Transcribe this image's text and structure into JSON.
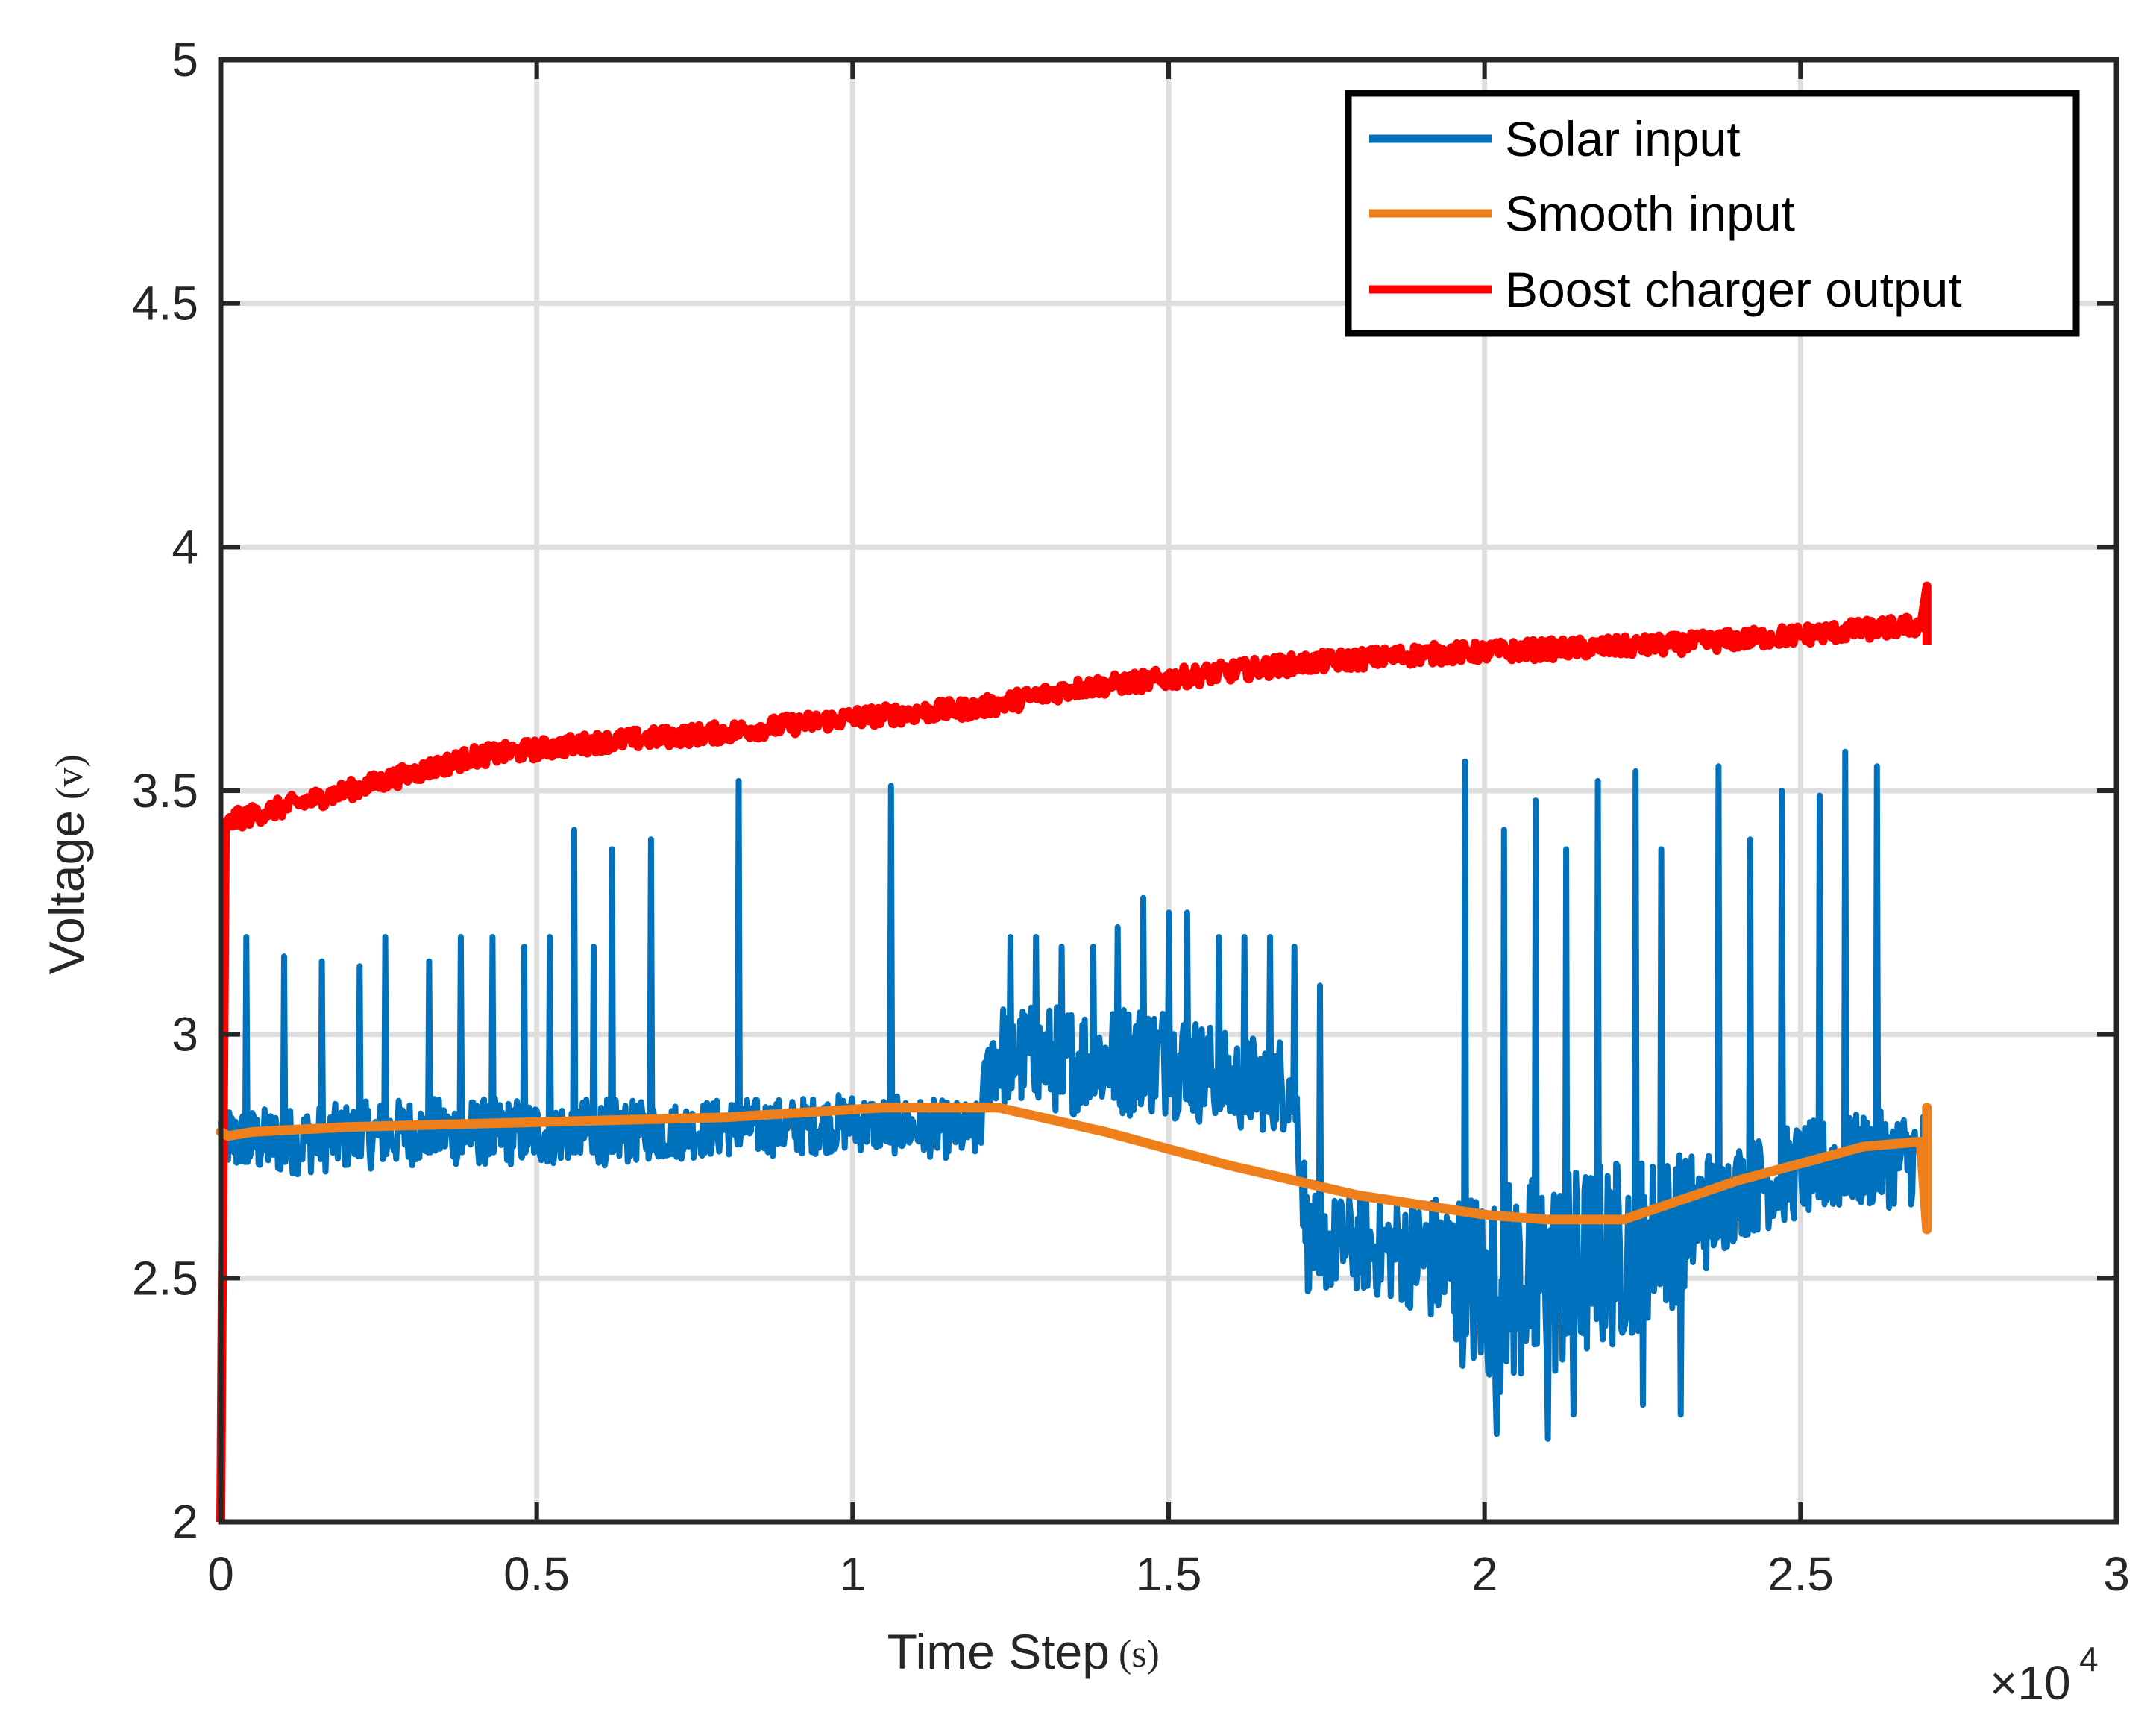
{
  "chart_data": {
    "type": "line",
    "title": "",
    "xlabel": "Time Step",
    "xlabel_unit": "(s)",
    "ylabel": "Voltage",
    "ylabel_unit": "(v)",
    "x_multiplier_label": "×10",
    "x_multiplier_exponent": "4",
    "xlim": [
      0,
      3
    ],
    "ylim": [
      2,
      5
    ],
    "x_ticks": [
      "0",
      "0.5",
      "1",
      "1.5",
      "2",
      "2.5",
      "3"
    ],
    "y_ticks": [
      "2",
      "2.5",
      "3",
      "3.5",
      "4",
      "4.5",
      "5"
    ],
    "grid": true,
    "legend_position": "top-right",
    "series": [
      {
        "name": "Solar input",
        "color": "#0072BD",
        "style": "noisy-with-spikes",
        "x": [
          0,
          0.02,
          0.1,
          0.2,
          0.3,
          0.4,
          0.5,
          0.6,
          0.7,
          0.8,
          0.9,
          1.0,
          1.1,
          1.2,
          1.22,
          1.3,
          1.4,
          1.5,
          1.6,
          1.7,
          1.72,
          1.8,
          1.9,
          2.0,
          2.1,
          2.2,
          2.3,
          2.4,
          2.5,
          2.6,
          2.7
        ],
        "values": [
          2.8,
          2.78,
          2.78,
          2.79,
          2.8,
          2.8,
          2.8,
          2.8,
          2.8,
          2.81,
          2.81,
          2.82,
          2.81,
          2.8,
          2.96,
          2.95,
          2.95,
          2.95,
          2.9,
          2.9,
          2.57,
          2.57,
          2.55,
          2.48,
          2.5,
          2.55,
          2.6,
          2.68,
          2.72,
          2.74,
          2.75
        ],
        "noise_amplitude": [
          0.07,
          0.07,
          0.07,
          0.07,
          0.07,
          0.07,
          0.07,
          0.07,
          0.06,
          0.06,
          0.06,
          0.06,
          0.06,
          0.06,
          0.11,
          0.11,
          0.12,
          0.12,
          0.1,
          0.1,
          0.1,
          0.1,
          0.12,
          0.22,
          0.22,
          0.2,
          0.16,
          0.1,
          0.1,
          0.1,
          0.1
        ],
        "spikes": [
          {
            "x": 0.04,
            "y": 3.2
          },
          {
            "x": 0.1,
            "y": 3.16
          },
          {
            "x": 0.16,
            "y": 3.15
          },
          {
            "x": 0.22,
            "y": 3.14
          },
          {
            "x": 0.26,
            "y": 3.2
          },
          {
            "x": 0.33,
            "y": 3.15
          },
          {
            "x": 0.38,
            "y": 3.2
          },
          {
            "x": 0.43,
            "y": 3.2
          },
          {
            "x": 0.48,
            "y": 3.18
          },
          {
            "x": 0.52,
            "y": 3.2
          },
          {
            "x": 0.56,
            "y": 3.18
          },
          {
            "x": 0.59,
            "y": 3.18
          },
          {
            "x": 0.56,
            "y": 3.42
          },
          {
            "x": 0.62,
            "y": 3.38
          },
          {
            "x": 0.68,
            "y": 3.4
          },
          {
            "x": 0.82,
            "y": 3.52
          },
          {
            "x": 1.06,
            "y": 3.51
          },
          {
            "x": 1.25,
            "y": 3.2
          },
          {
            "x": 1.29,
            "y": 3.2
          },
          {
            "x": 1.33,
            "y": 3.18
          },
          {
            "x": 1.38,
            "y": 3.18
          },
          {
            "x": 1.42,
            "y": 3.22
          },
          {
            "x": 1.46,
            "y": 3.28
          },
          {
            "x": 1.5,
            "y": 3.25
          },
          {
            "x": 1.53,
            "y": 3.25
          },
          {
            "x": 1.58,
            "y": 3.2
          },
          {
            "x": 1.62,
            "y": 3.2
          },
          {
            "x": 1.66,
            "y": 3.2
          },
          {
            "x": 1.7,
            "y": 3.18
          },
          {
            "x": 1.74,
            "y": 3.1
          },
          {
            "x": 1.97,
            "y": 3.56
          },
          {
            "x": 2.03,
            "y": 3.42
          },
          {
            "x": 2.08,
            "y": 3.48
          },
          {
            "x": 2.13,
            "y": 3.38
          },
          {
            "x": 2.18,
            "y": 3.52
          },
          {
            "x": 2.24,
            "y": 3.54
          },
          {
            "x": 2.28,
            "y": 3.38
          },
          {
            "x": 2.37,
            "y": 3.55
          },
          {
            "x": 2.42,
            "y": 3.4
          },
          {
            "x": 2.47,
            "y": 3.5
          },
          {
            "x": 2.53,
            "y": 3.49
          },
          {
            "x": 2.57,
            "y": 3.58
          },
          {
            "x": 2.62,
            "y": 3.55
          }
        ],
        "dips": [
          {
            "x": 2.02,
            "y": 2.18
          },
          {
            "x": 2.1,
            "y": 2.17
          },
          {
            "x": 2.14,
            "y": 2.22
          },
          {
            "x": 2.25,
            "y": 2.24
          },
          {
            "x": 2.31,
            "y": 2.22
          }
        ]
      },
      {
        "name": "Smooth input",
        "color": "#EE7F1A",
        "style": "smooth",
        "x": [
          0,
          0.005,
          0.05,
          0.2,
          0.5,
          0.8,
          1.05,
          1.23,
          1.4,
          1.6,
          1.8,
          2.0,
          2.1,
          2.22,
          2.4,
          2.6,
          2.69,
          2.7
        ],
        "values": [
          2.8,
          2.79,
          2.8,
          2.81,
          2.82,
          2.83,
          2.85,
          2.85,
          2.8,
          2.73,
          2.67,
          2.63,
          2.62,
          2.62,
          2.7,
          2.77,
          2.78,
          2.6
        ]
      },
      {
        "name": "Boost charger output",
        "color": "#FF0000",
        "style": "noisy",
        "x": [
          0,
          0.005,
          0.02,
          0.2,
          0.4,
          0.6,
          0.8,
          1.0,
          1.2,
          1.35,
          1.5,
          1.7,
          1.9,
          2.1,
          2.3,
          2.5,
          2.6,
          2.69,
          2.7
        ],
        "values": [
          2.0,
          3.42,
          3.44,
          3.5,
          3.57,
          3.6,
          3.62,
          3.65,
          3.67,
          3.71,
          3.73,
          3.76,
          3.78,
          3.79,
          3.8,
          3.82,
          3.83,
          3.84,
          3.92
        ],
        "noise_amplitude": 0.02
      }
    ]
  }
}
